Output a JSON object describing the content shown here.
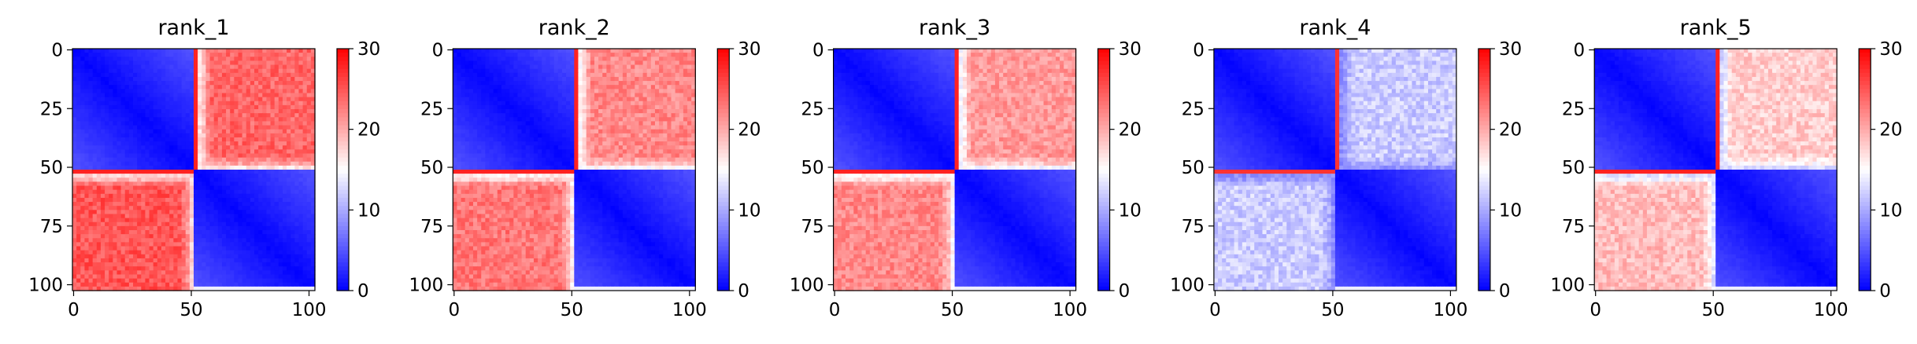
{
  "chart_data": [
    {
      "type": "heatmap",
      "title": "rank_1",
      "matrix_size": 103,
      "xticks": [
        0,
        50,
        100
      ],
      "yticks": [
        0,
        25,
        50,
        75,
        100
      ],
      "colorbar": {
        "min": 0,
        "max": 30,
        "ticks": [
          0,
          10,
          20,
          30
        ]
      },
      "colormap": {
        "low": "#0000ff",
        "mid": "#ffffff",
        "high": "#ff0000"
      },
      "domain_boundary": 52,
      "offdiag_values": {
        "upper_right": 24,
        "lower_left": 25
      },
      "boundary_stripe": 28
    },
    {
      "type": "heatmap",
      "title": "rank_2",
      "matrix_size": 103,
      "xticks": [
        0,
        50,
        100
      ],
      "yticks": [
        0,
        25,
        50,
        75,
        100
      ],
      "colorbar": {
        "min": 0,
        "max": 30,
        "ticks": [
          0,
          10,
          20,
          30
        ]
      },
      "colormap": {
        "low": "#0000ff",
        "mid": "#ffffff",
        "high": "#ff0000"
      },
      "domain_boundary": 52,
      "offdiag_values": {
        "upper_right": 22,
        "lower_left": 23
      },
      "boundary_stripe": 28
    },
    {
      "type": "heatmap",
      "title": "rank_3",
      "matrix_size": 103,
      "xticks": [
        0,
        50,
        100
      ],
      "yticks": [
        0,
        25,
        50,
        75,
        100
      ],
      "colorbar": {
        "min": 0,
        "max": 30,
        "ticks": [
          0,
          10,
          20,
          30
        ]
      },
      "colormap": {
        "low": "#0000ff",
        "mid": "#ffffff",
        "high": "#ff0000"
      },
      "domain_boundary": 52,
      "offdiag_values": {
        "upper_right": 21,
        "lower_left": 22
      },
      "boundary_stripe": 28
    },
    {
      "type": "heatmap",
      "title": "rank_4",
      "matrix_size": 103,
      "xticks": [
        0,
        50,
        100
      ],
      "yticks": [
        0,
        25,
        50,
        75,
        100
      ],
      "colorbar": {
        "min": 0,
        "max": 30,
        "ticks": [
          0,
          10,
          20,
          30
        ]
      },
      "colormap": {
        "low": "#0000ff",
        "mid": "#ffffff",
        "high": "#ff0000"
      },
      "domain_boundary": 52,
      "offdiag_values": {
        "upper_right": 12,
        "lower_left": 12
      },
      "boundary_stripe": 27
    },
    {
      "type": "heatmap",
      "title": "rank_5",
      "matrix_size": 103,
      "xticks": [
        0,
        50,
        100
      ],
      "yticks": [
        0,
        25,
        50,
        75,
        100
      ],
      "colorbar": {
        "min": 0,
        "max": 30,
        "ticks": [
          0,
          10,
          20,
          30
        ]
      },
      "colormap": {
        "low": "#0000ff",
        "mid": "#ffffff",
        "high": "#ff0000"
      },
      "domain_boundary": 52,
      "offdiag_values": {
        "upper_right": 18,
        "lower_left": 19
      },
      "boundary_stripe": 28
    }
  ]
}
